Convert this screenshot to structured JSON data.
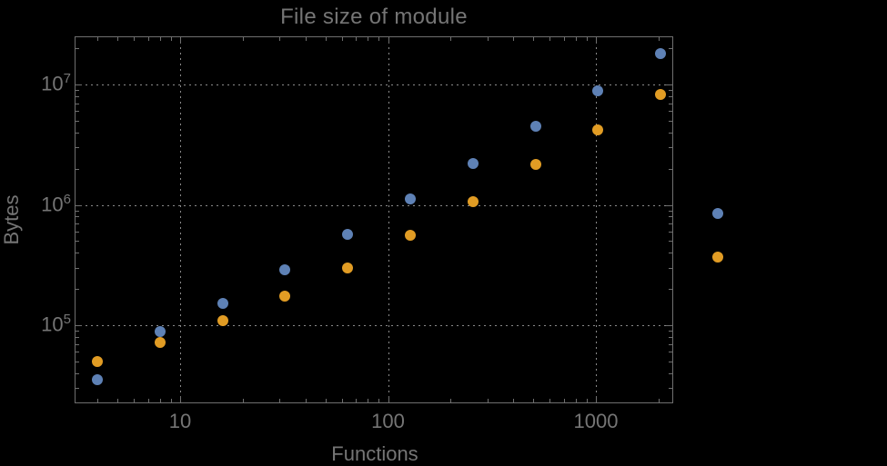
{
  "colors": {
    "background": "#000000",
    "frame": "#6f6f6f",
    "grid": "#8a8a8a",
    "text": "#757575",
    "series_blue": "#5e81b5",
    "series_orange": "#e19c24"
  },
  "chart_data": {
    "type": "scatter",
    "title": "File size of module",
    "xlabel": "Functions",
    "ylabel": "Bytes",
    "x_scale": "log",
    "y_scale": "log",
    "xlim": [
      3.1,
      2350
    ],
    "ylim": [
      23000,
      25000000
    ],
    "x_ticks_labeled": [
      10,
      100,
      1000
    ],
    "x_tick_label_texts": [
      "10",
      "100",
      "1000"
    ],
    "y_ticks_labeled": [
      100000,
      1000000,
      10000000
    ],
    "y_tick_exponents": [
      5,
      6,
      7
    ],
    "grid": "dotted gray lines at labeled decades only",
    "x": [
      4,
      8,
      16,
      32,
      64,
      128,
      256,
      512,
      1024,
      2048
    ],
    "series": [
      {
        "name": "series-1-blue",
        "color": "#5e81b5",
        "values": [
          35500,
          88000,
          153000,
          291000,
          573000,
          1110000,
          2220000,
          4460000,
          8900000,
          17900000
        ]
      },
      {
        "name": "series-2-orange",
        "color": "#e19c24",
        "values": [
          50000,
          72000,
          110000,
          173000,
          301000,
          555000,
          1070000,
          2150000,
          4200000,
          8300000
        ]
      }
    ],
    "legend": {
      "position": "right-of-frame",
      "labels_visible": false,
      "markers": [
        {
          "series": "series-1-blue",
          "color": "#5e81b5"
        },
        {
          "series": "series-2-orange",
          "color": "#e19c24"
        }
      ]
    }
  }
}
